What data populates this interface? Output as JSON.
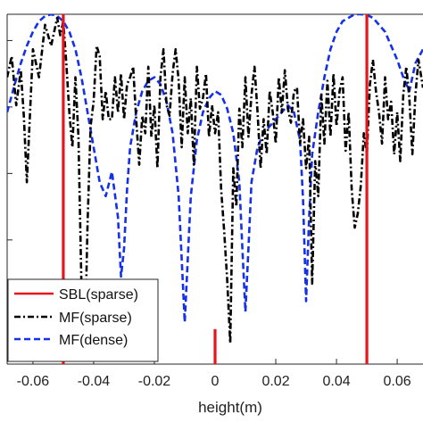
{
  "chart_data": {
    "type": "line",
    "xlabel": "height(m)",
    "ylabel": "",
    "title": "",
    "xlim": [
      -0.0685,
      0.0685
    ],
    "ylim": [
      0,
      1
    ],
    "x_ticks": [
      -0.06,
      -0.04,
      -0.02,
      0,
      0.02,
      0.04,
      0.06
    ],
    "x_tick_labels": [
      "-0.06",
      "-0.04",
      "-0.02",
      "0",
      "0.02",
      "0.04",
      "0.06"
    ],
    "y_ticks": [
      0.166,
      0.355,
      0.545,
      0.735,
      0.925
    ],
    "grid": false,
    "legend_position": "bottom-left",
    "legend": [
      "SBL(sparse)",
      "MF(sparse)",
      "MF(dense)"
    ],
    "series": [
      {
        "name": "SBL(sparse)",
        "style": "solid",
        "color": "#e8141b",
        "stems": [
          {
            "x": -0.05,
            "y": 1.0
          },
          {
            "x": 0.0,
            "y": 0.1
          },
          {
            "x": 0.05,
            "y": 1.0
          }
        ]
      },
      {
        "name": "MF(sparse)",
        "style": "dashdot",
        "color": "#000000",
        "x": [
          -0.0685,
          -0.067,
          -0.0655,
          -0.064,
          -0.063,
          -0.062,
          -0.06,
          -0.058,
          -0.056,
          -0.054,
          -0.052,
          -0.051,
          -0.05,
          -0.049,
          -0.048,
          -0.047,
          -0.046,
          -0.045,
          -0.044,
          -0.043,
          -0.042,
          -0.041,
          -0.04,
          -0.039,
          -0.038,
          -0.037,
          -0.036,
          -0.035,
          -0.034,
          -0.033,
          -0.032,
          -0.031,
          -0.03,
          -0.029,
          -0.028,
          -0.027,
          -0.026,
          -0.025,
          -0.024,
          -0.023,
          -0.022,
          -0.021,
          -0.02,
          -0.019,
          -0.018,
          -0.017,
          -0.016,
          -0.015,
          -0.014,
          -0.013,
          -0.012,
          -0.011,
          -0.01,
          -0.009,
          -0.008,
          -0.007,
          -0.006,
          -0.005,
          -0.004,
          -0.003,
          -0.002,
          -0.001,
          0.0,
          0.001,
          0.002,
          0.003,
          0.004,
          0.005,
          0.006,
          0.007,
          0.008,
          0.009,
          0.01,
          0.011,
          0.012,
          0.013,
          0.014,
          0.015,
          0.016,
          0.017,
          0.018,
          0.019,
          0.02,
          0.021,
          0.022,
          0.023,
          0.024,
          0.025,
          0.026,
          0.027,
          0.028,
          0.029,
          0.03,
          0.031,
          0.032,
          0.033,
          0.034,
          0.035,
          0.036,
          0.037,
          0.038,
          0.039,
          0.04,
          0.041,
          0.042,
          0.043,
          0.044,
          0.045,
          0.046,
          0.047,
          0.048,
          0.049,
          0.05,
          0.051,
          0.052,
          0.053,
          0.054,
          0.055,
          0.056,
          0.057,
          0.058,
          0.059,
          0.06,
          0.061,
          0.062,
          0.063,
          0.064,
          0.065,
          0.066,
          0.067,
          0.0685
        ],
        "y": [
          0.82,
          0.88,
          0.74,
          0.84,
          0.71,
          0.52,
          0.9,
          0.82,
          0.97,
          0.91,
          0.99,
          0.94,
          0.98,
          0.86,
          0.72,
          0.62,
          0.82,
          0.65,
          0.22,
          0.01,
          0.4,
          0.68,
          0.75,
          0.91,
          0.88,
          0.7,
          0.78,
          0.7,
          0.7,
          0.82,
          0.72,
          0.83,
          0.7,
          0.8,
          0.82,
          0.85,
          0.7,
          0.57,
          0.71,
          0.66,
          0.85,
          0.65,
          0.74,
          0.56,
          0.82,
          0.9,
          0.74,
          0.71,
          0.83,
          0.9,
          0.81,
          0.62,
          0.82,
          0.66,
          0.76,
          0.57,
          0.85,
          0.73,
          0.76,
          0.83,
          0.65,
          0.74,
          0.66,
          0.72,
          0.5,
          0.38,
          0.24,
          0.06,
          0.56,
          0.45,
          0.73,
          0.62,
          0.82,
          0.65,
          0.77,
          0.85,
          0.72,
          0.56,
          0.7,
          0.6,
          0.78,
          0.72,
          0.63,
          0.82,
          0.72,
          0.84,
          0.73,
          0.69,
          0.78,
          0.79,
          0.63,
          0.7,
          0.56,
          0.65,
          0.23,
          0.58,
          0.48,
          0.77,
          0.63,
          0.81,
          0.65,
          0.83,
          0.68,
          0.78,
          0.82,
          0.61,
          0.72,
          0.5,
          0.39,
          0.43,
          0.51,
          0.66,
          0.6,
          0.8,
          0.87,
          0.78,
          0.72,
          0.63,
          0.82,
          0.7,
          0.75,
          0.6,
          0.72,
          0.58,
          0.77,
          0.85,
          0.76,
          0.6,
          0.77,
          0.87,
          0.79
        ]
      },
      {
        "name": "MF(dense)",
        "style": "dashed",
        "color": "#1430e8",
        "x": [
          -0.0685,
          -0.066,
          -0.064,
          -0.062,
          -0.06,
          -0.058,
          -0.056,
          -0.054,
          -0.052,
          -0.05,
          -0.048,
          -0.046,
          -0.044,
          -0.042,
          -0.04,
          -0.038,
          -0.036,
          -0.034,
          -0.032,
          -0.031,
          -0.03,
          -0.029,
          -0.028,
          -0.026,
          -0.024,
          -0.022,
          -0.02,
          -0.018,
          -0.016,
          -0.014,
          -0.012,
          -0.011,
          -0.01,
          -0.009,
          -0.008,
          -0.006,
          -0.004,
          -0.002,
          0.0,
          0.002,
          0.004,
          0.006,
          0.008,
          0.009,
          0.01,
          0.011,
          0.012,
          0.014,
          0.016,
          0.018,
          0.02,
          0.022,
          0.024,
          0.026,
          0.028,
          0.029,
          0.03,
          0.031,
          0.032,
          0.034,
          0.036,
          0.038,
          0.04,
          0.042,
          0.044,
          0.046,
          0.048,
          0.05,
          0.052,
          0.054,
          0.056,
          0.058,
          0.06,
          0.062,
          0.064,
          0.066,
          0.0685
        ],
        "y": [
          0.72,
          0.8,
          0.86,
          0.91,
          0.95,
          0.98,
          0.995,
          1.0,
          0.995,
          0.98,
          0.95,
          0.9,
          0.82,
          0.72,
          0.62,
          0.52,
          0.48,
          0.55,
          0.42,
          0.25,
          0.33,
          0.5,
          0.62,
          0.72,
          0.78,
          0.81,
          0.82,
          0.8,
          0.75,
          0.66,
          0.48,
          0.3,
          0.12,
          0.3,
          0.48,
          0.64,
          0.72,
          0.76,
          0.78,
          0.77,
          0.73,
          0.66,
          0.52,
          0.33,
          0.15,
          0.33,
          0.52,
          0.62,
          0.66,
          0.68,
          0.7,
          0.72,
          0.74,
          0.72,
          0.64,
          0.47,
          0.18,
          0.42,
          0.6,
          0.72,
          0.82,
          0.9,
          0.95,
          0.98,
          0.99,
          1.0,
          1.0,
          0.998,
          0.99,
          0.97,
          0.95,
          0.91,
          0.87,
          0.82,
          0.78,
          0.86,
          0.9
        ]
      }
    ]
  }
}
